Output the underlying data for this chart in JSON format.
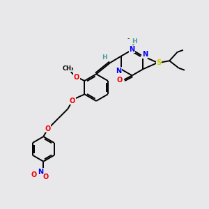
{
  "bg_color": "#e8e8ea",
  "bond_color": "#000000",
  "bond_width": 1.4,
  "atom_colors": {
    "H": "#4a9e9e",
    "N": "#0000ee",
    "O": "#ee0000",
    "S": "#cccc00"
  },
  "figsize": [
    3.0,
    3.0
  ],
  "dpi": 100,
  "xlim": [
    0,
    10
  ],
  "ylim": [
    0,
    10
  ]
}
